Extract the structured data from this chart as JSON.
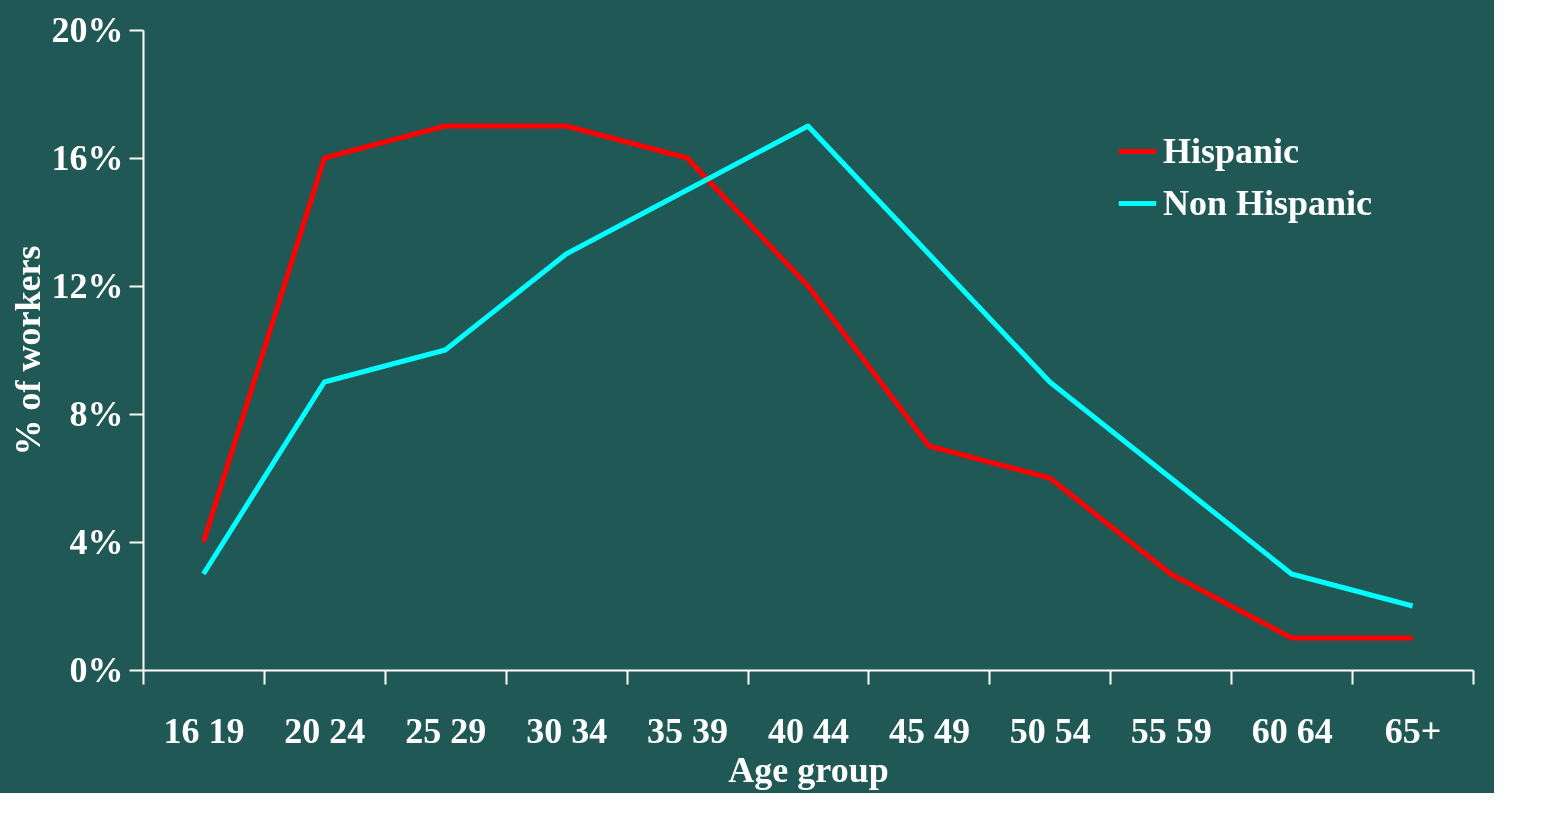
{
  "chart_data": {
    "type": "line",
    "xlabel": "Age group",
    "ylabel": "% of workers",
    "categories": [
      "16 19",
      "20 24",
      "25 29",
      "30 34",
      "35 39",
      "40 44",
      "45 49",
      "50 54",
      "55 59",
      "60 64",
      "65+"
    ],
    "series": [
      {
        "name": "Hispanic",
        "color": "#ff0000",
        "values": [
          4,
          16,
          17,
          17,
          16,
          12,
          7,
          6,
          3,
          1,
          1
        ]
      },
      {
        "name": "Non Hispanic",
        "color": "#00ffff",
        "values": [
          3,
          9,
          10,
          13,
          15,
          17,
          13,
          9,
          6,
          3,
          2
        ]
      }
    ],
    "ylim": [
      0,
      20
    ],
    "yticks": [
      {
        "value": 0,
        "label": "0%"
      },
      {
        "value": 4,
        "label": "4%"
      },
      {
        "value": 8,
        "label": "8%"
      },
      {
        "value": 12,
        "label": "12%"
      },
      {
        "value": 16,
        "label": "16%"
      },
      {
        "value": 20,
        "label": "20%"
      }
    ],
    "grid": false,
    "legend": "top right",
    "marker": "none",
    "line_style": "solid"
  }
}
